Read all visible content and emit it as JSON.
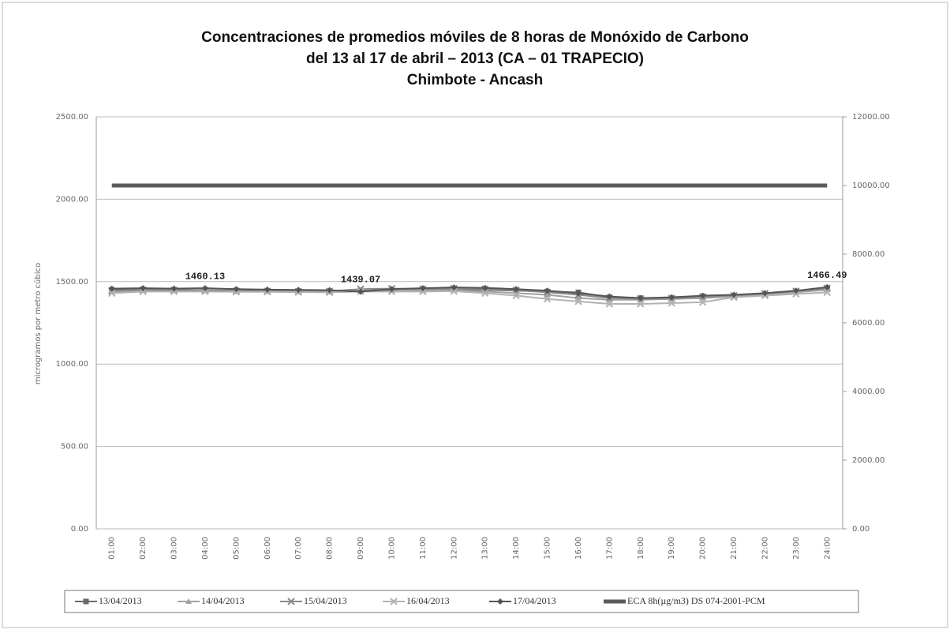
{
  "chart_data": {
    "type": "line",
    "title": [
      "Concentraciones de promedios móviles de 8 horas de Monóxido de Carbono",
      "del 13 al 17 de abril – 2013 (CA – 01 TRAPECIO)",
      "Chimbote - Ancash"
    ],
    "y_label": "microgramos por metro cúbico",
    "categories": [
      "01:00",
      "02:00",
      "03:00",
      "04:00",
      "05:00",
      "06:00",
      "07:00",
      "08:00",
      "09:00",
      "10:00",
      "11:00",
      "12:00",
      "13:00",
      "14:00",
      "15:00",
      "16:00",
      "17:00",
      "18:00",
      "19:00",
      "20:00",
      "21:00",
      "22:00",
      "23:00",
      "24:00"
    ],
    "ylim": [
      0,
      2500
    ],
    "yticks": [
      {
        "value": 0,
        "label": "0.00"
      },
      {
        "value": 500,
        "label": "500.00"
      },
      {
        "value": 1000,
        "label": "1000.00"
      },
      {
        "value": 1500,
        "label": "1500.00"
      },
      {
        "value": 2000,
        "label": "2000.00"
      },
      {
        "value": 2500,
        "label": "2500.00"
      }
    ],
    "y2lim": [
      0,
      12000
    ],
    "y2ticks": [
      {
        "value": 0,
        "label": "0.00"
      },
      {
        "value": 2000,
        "label": "2000.00"
      },
      {
        "value": 4000,
        "label": "4000.00"
      },
      {
        "value": 6000,
        "label": "6000.00"
      },
      {
        "value": 8000,
        "label": "8000.00"
      },
      {
        "value": 10000,
        "label": "10000.00"
      },
      {
        "value": 12000,
        "label": "12000.00"
      }
    ],
    "grid": true,
    "legend": "bottom",
    "series": [
      {
        "name": "13/04/2013",
        "color": "#6a6a6a",
        "marker": "square",
        "values": [
          1450,
          1452,
          1450,
          1448,
          1445,
          1443,
          1440,
          1440,
          1445,
          1448,
          1450,
          1452,
          1450,
          1445,
          1440,
          1435,
          1405,
          1400,
          1400,
          1410,
          1415,
          1425,
          1440,
          1455
        ]
      },
      {
        "name": "14/04/2013",
        "color": "#a2a2a2",
        "marker": "triangle",
        "values": [
          1440,
          1445,
          1445,
          1445,
          1440,
          1440,
          1438,
          1440,
          1450,
          1450,
          1445,
          1448,
          1440,
          1430,
          1420,
          1400,
          1390,
          1390,
          1395,
          1400,
          1410,
          1420,
          1435,
          1450
        ]
      },
      {
        "name": "15/04/2013",
        "color": "#8a8a8a",
        "marker": "cross",
        "values": [
          1445,
          1450,
          1448,
          1447,
          1443,
          1442,
          1440,
          1442,
          1455,
          1458,
          1455,
          1458,
          1455,
          1448,
          1435,
          1420,
          1400,
          1395,
          1398,
          1408,
          1415,
          1428,
          1442,
          1460
        ]
      },
      {
        "name": "16/04/2013",
        "color": "#b2b2b2",
        "marker": "cross",
        "values": [
          1430,
          1440,
          1440,
          1440,
          1438,
          1438,
          1436,
          1435,
          1440,
          1440,
          1440,
          1442,
          1430,
          1415,
          1395,
          1380,
          1365,
          1365,
          1370,
          1375,
          1405,
          1415,
          1425,
          1435
        ]
      },
      {
        "name": "17/04/2013",
        "color": "#555555",
        "marker": "diamond",
        "values": [
          1458,
          1460,
          1458,
          1460.13,
          1455,
          1452,
          1450,
          1448,
          1439.07,
          1455,
          1460,
          1465,
          1462,
          1455,
          1445,
          1430,
          1410,
          1400,
          1405,
          1415,
          1420,
          1430,
          1445,
          1466.49
        ],
        "value_labels": [
          null,
          null,
          null,
          "1460.13",
          null,
          null,
          null,
          null,
          "1439.07",
          null,
          null,
          null,
          null,
          null,
          null,
          null,
          null,
          null,
          null,
          null,
          null,
          null,
          null,
          "1466.49"
        ]
      },
      {
        "name": "ECA 8h(µg/m3) DS 074-2001-PCM",
        "color": "#5c5c5c",
        "axis": "y2",
        "width": 5,
        "values": [
          10000,
          10000,
          10000,
          10000,
          10000,
          10000,
          10000,
          10000,
          10000,
          10000,
          10000,
          10000,
          10000,
          10000,
          10000,
          10000,
          10000,
          10000,
          10000,
          10000,
          10000,
          10000,
          10000,
          10000
        ]
      }
    ]
  }
}
